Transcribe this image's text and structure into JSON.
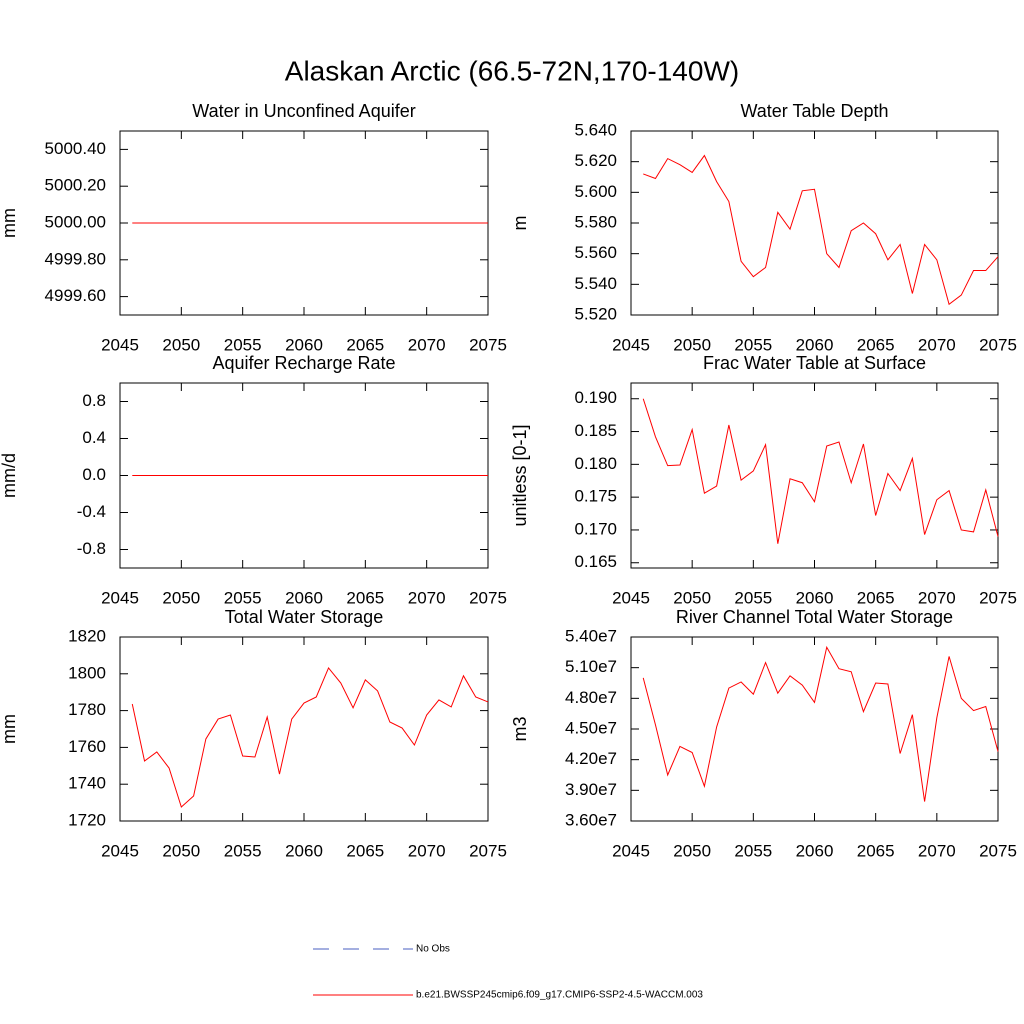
{
  "title": "Alaskan Arctic (66.5-72N,170-140W)",
  "legend": {
    "entries": [
      {
        "name": "No Obs",
        "color": "#4a5fc1",
        "dash": true
      },
      {
        "name": "b.e21.BWSSP245cmip6.f09_g17.CMIP6-SSP2-4.5-WACCM.003",
        "color": "#ff0000",
        "dash": false
      }
    ]
  },
  "chart_data": [
    {
      "type": "line",
      "title": "Water in Unconfined Aquifer",
      "y_label": "mm",
      "color": "#ff0000",
      "x": [
        2046,
        2047,
        2048,
        2049,
        2050,
        2051,
        2052,
        2053,
        2054,
        2055,
        2056,
        2057,
        2058,
        2059,
        2060,
        2061,
        2062,
        2063,
        2064,
        2065,
        2066,
        2067,
        2068,
        2069,
        2070,
        2071,
        2072,
        2073,
        2074,
        2075
      ],
      "values": [
        5000,
        5000,
        5000,
        5000,
        5000,
        5000,
        5000,
        5000,
        5000,
        5000,
        5000,
        5000,
        5000,
        5000,
        5000,
        5000,
        5000,
        5000,
        5000,
        5000,
        5000,
        5000,
        5000,
        5000,
        5000,
        5000,
        5000,
        5000,
        5000,
        5000
      ],
      "xlim": [
        2045,
        2075
      ],
      "xticks": [
        2045,
        2050,
        2055,
        2060,
        2065,
        2070,
        2075
      ],
      "ylim": [
        4999.5,
        5000.5
      ],
      "yticks": [
        {
          "value": 4999.6,
          "label": "4999.60"
        },
        {
          "value": 4999.8,
          "label": "4999.80"
        },
        {
          "value": 5000,
          "label": "5000.00"
        },
        {
          "value": 5000.2,
          "label": "5000.20"
        },
        {
          "value": 5000.4,
          "label": "5000.40"
        }
      ]
    },
    {
      "type": "line",
      "title": "Water Table Depth",
      "y_label": "m",
      "color": "#ff0000",
      "x": [
        2046,
        2047,
        2048,
        2049,
        2050,
        2051,
        2052,
        2053,
        2054,
        2055,
        2056,
        2057,
        2058,
        2059,
        2060,
        2061,
        2062,
        2063,
        2064,
        2065,
        2066,
        2067,
        2068,
        2069,
        2070,
        2071,
        2072,
        2073,
        2074,
        2075
      ],
      "values": [
        5.612,
        5.609,
        5.622,
        5.618,
        5.613,
        5.624,
        5.607,
        5.594,
        5.555,
        5.545,
        5.551,
        5.587,
        5.576,
        5.601,
        5.602,
        5.56,
        5.551,
        5.575,
        5.58,
        5.573,
        5.556,
        5.566,
        5.534,
        5.566,
        5.556,
        5.527,
        5.533,
        5.549,
        5.549,
        5.558
      ],
      "xlim": [
        2045,
        2075
      ],
      "xticks": [
        2045,
        2050,
        2055,
        2060,
        2065,
        2070,
        2075
      ],
      "ylim": [
        5.52,
        5.64
      ],
      "yticks": [
        {
          "value": 5.52,
          "label": "5.520"
        },
        {
          "value": 5.54,
          "label": "5.540"
        },
        {
          "value": 5.56,
          "label": "5.560"
        },
        {
          "value": 5.58,
          "label": "5.580"
        },
        {
          "value": 5.6,
          "label": "5.600"
        },
        {
          "value": 5.62,
          "label": "5.620"
        },
        {
          "value": 5.64,
          "label": "5.640"
        }
      ]
    },
    {
      "type": "line",
      "title": "Aquifer Recharge Rate",
      "y_label": "mm/d",
      "color": "#ff0000",
      "x": [
        2046,
        2047,
        2048,
        2049,
        2050,
        2051,
        2052,
        2053,
        2054,
        2055,
        2056,
        2057,
        2058,
        2059,
        2060,
        2061,
        2062,
        2063,
        2064,
        2065,
        2066,
        2067,
        2068,
        2069,
        2070,
        2071,
        2072,
        2073,
        2074,
        2075
      ],
      "values": [
        0,
        0,
        0,
        0,
        0,
        0,
        0,
        0,
        0,
        0,
        0,
        0,
        0,
        0,
        0,
        0,
        0,
        0,
        0,
        0,
        0,
        0,
        0,
        0,
        0,
        0,
        0,
        0,
        0,
        0
      ],
      "xlim": [
        2045,
        2075
      ],
      "xticks": [
        2045,
        2050,
        2055,
        2060,
        2065,
        2070,
        2075
      ],
      "ylim": [
        -1,
        1
      ],
      "yticks": [
        -0.8,
        -0.4,
        {
          "value": 0,
          "label": "0.0"
        },
        0.4,
        0.8
      ]
    },
    {
      "type": "line",
      "title": "Frac Water Table at Surface",
      "y_label": "unitless [0-1]",
      "color": "#ff0000",
      "x": [
        2046,
        2047,
        2048,
        2049,
        2050,
        2051,
        2052,
        2053,
        2054,
        2055,
        2056,
        2057,
        2058,
        2059,
        2060,
        2061,
        2062,
        2063,
        2064,
        2065,
        2066,
        2067,
        2068,
        2069,
        2070,
        2071,
        2072,
        2073,
        2074,
        2075
      ],
      "values": [
        0.19,
        0.1842,
        0.1798,
        0.1799,
        0.1853,
        0.1756,
        0.1767,
        0.186,
        0.1776,
        0.179,
        0.183,
        0.1679,
        0.1778,
        0.1772,
        0.1743,
        0.1828,
        0.1834,
        0.1772,
        0.1831,
        0.1722,
        0.1786,
        0.176,
        0.1809,
        0.1693,
        0.1746,
        0.176,
        0.17,
        0.1697,
        0.1761,
        0.169
      ],
      "xlim": [
        2045,
        2075
      ],
      "xticks": [
        2045,
        2050,
        2055,
        2060,
        2065,
        2070,
        2075
      ],
      "ylim": [
        0.1642,
        0.1924
      ],
      "yticks": [
        0.165,
        {
          "value": 0.17,
          "label": "0.170"
        },
        0.175,
        {
          "value": 0.18,
          "label": "0.180"
        },
        0.185,
        {
          "value": 0.19,
          "label": "0.190"
        }
      ]
    },
    {
      "type": "line",
      "title": "Total Water Storage",
      "y_label": "mm",
      "color": "#ff0000",
      "x": [
        2046,
        2047,
        2048,
        2049,
        2050,
        2051,
        2052,
        2053,
        2054,
        2055,
        2056,
        2057,
        2058,
        2059,
        2060,
        2061,
        2062,
        2063,
        2064,
        2065,
        2066,
        2067,
        2068,
        2069,
        2070,
        2071,
        2072,
        2073,
        2074,
        2075
      ],
      "values": [
        1783.6,
        1752.6,
        1757.5,
        1748.8,
        1727.6,
        1733.6,
        1764.6,
        1775.4,
        1777.6,
        1755.3,
        1754.8,
        1776.5,
        1745.5,
        1775.4,
        1784.1,
        1787.4,
        1803.2,
        1795,
        1781.5,
        1796.7,
        1790.7,
        1773.8,
        1770.5,
        1761.3,
        1777.6,
        1785.8,
        1782,
        1798.9,
        1787.4,
        1784.7
      ],
      "xlim": [
        2045,
        2075
      ],
      "xticks": [
        2045,
        2050,
        2055,
        2060,
        2065,
        2070,
        2075
      ],
      "ylim": [
        1720,
        1820
      ],
      "yticks": [
        1720,
        1740,
        1760,
        1780,
        1800,
        1820
      ]
    },
    {
      "type": "line",
      "title": "River Channel Total Water Storage",
      "y_label": "m3",
      "color": "#ff0000",
      "x": [
        2046,
        2047,
        2048,
        2049,
        2050,
        2051,
        2052,
        2053,
        2054,
        2055,
        2056,
        2057,
        2058,
        2059,
        2060,
        2061,
        2062,
        2063,
        2064,
        2065,
        2066,
        2067,
        2068,
        2069,
        2070,
        2071,
        2072,
        2073,
        2074,
        2075
      ],
      "values": [
        50000000,
        45400000,
        40500000,
        43300000,
        42700000,
        39400000,
        45200000,
        49000000,
        49600000,
        48400000,
        51500000,
        48500000,
        50200000,
        49300000,
        47600000,
        53000000,
        50900000,
        50600000,
        46700000,
        49500000,
        49400000,
        42600000,
        46400000,
        37900000,
        46100000,
        52100000,
        48000000,
        46800000,
        47200000,
        42800000
      ],
      "xlim": [
        2045,
        2075
      ],
      "xticks": [
        2045,
        2050,
        2055,
        2060,
        2065,
        2070,
        2075
      ],
      "ylim": [
        36000000,
        54000000
      ],
      "yticks": [
        {
          "value": 36000000,
          "label": "3.60e7"
        },
        {
          "value": 39000000,
          "label": "3.90e7"
        },
        {
          "value": 42000000,
          "label": "4.20e7"
        },
        {
          "value": 45000000,
          "label": "4.50e7"
        },
        {
          "value": 48000000,
          "label": "4.80e7"
        },
        {
          "value": 51000000,
          "label": "5.10e7"
        },
        {
          "value": 54000000,
          "label": "5.40e7"
        }
      ]
    }
  ]
}
